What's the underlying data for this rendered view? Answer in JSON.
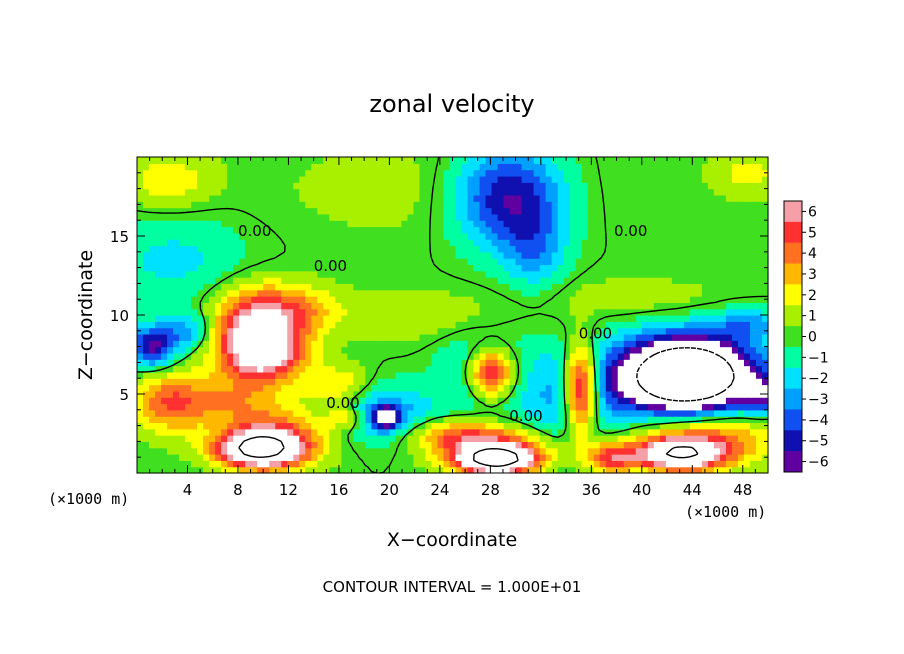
{
  "chart_data": {
    "type": "heatmap",
    "title": "zonal velocity",
    "xlabel": "X−coordinate",
    "ylabel": "Z−coordinate",
    "x_unit_left": "(×1000 m)",
    "x_unit_right": "(×1000 m)",
    "footer": "CONTOUR INTERVAL = 1.000E+01",
    "xlim": [
      0,
      50
    ],
    "ylim": [
      0,
      20
    ],
    "x_ticks": [
      4,
      8,
      12,
      16,
      20,
      24,
      28,
      32,
      36,
      40,
      44,
      48
    ],
    "y_ticks": [
      5,
      10,
      15
    ],
    "colorbar": {
      "levels": [
        6,
        5,
        4,
        3,
        2,
        1,
        0,
        -1,
        -2,
        -3,
        -4,
        -5,
        -6
      ],
      "labels": [
        "6",
        "5",
        "4",
        "3",
        "2",
        "1",
        "0",
        "−1",
        "−2",
        "−3",
        "−4",
        "−5",
        "−6"
      ],
      "colors": [
        "#f5a0a8",
        "#ff3030",
        "#ff7020",
        "#ffb800",
        "#ffff00",
        "#a8f000",
        "#40e020",
        "#00ffa0",
        "#00e0ff",
        "#00a0ff",
        "#1050f0",
        "#1010b0",
        "#6000a0"
      ]
    },
    "contour_labels": [
      {
        "text": "0.00",
        "x": 8.0,
        "z": 15.0
      },
      {
        "text": "0.00",
        "x": 14.0,
        "z": 12.8
      },
      {
        "text": "0.00",
        "x": 37.8,
        "z": 15.0
      },
      {
        "text": "0.00",
        "x": 35.0,
        "z": 8.5
      },
      {
        "text": "0.00",
        "x": 15.0,
        "z": 4.1
      },
      {
        "text": "0.00",
        "x": 29.5,
        "z": 3.3
      }
    ],
    "blobs": [
      {
        "x": 24,
        "z": 18,
        "rx": 14,
        "rz": 3.5,
        "v": 1.0
      },
      {
        "x": 2.5,
        "z": 18.5,
        "rx": 3.5,
        "rz": 1.8,
        "v": 2.2
      },
      {
        "x": 48.5,
        "z": 19,
        "rx": 3,
        "rz": 1.5,
        "v": 1.8
      },
      {
        "x": 29.5,
        "z": 17.5,
        "rx": 4.5,
        "rz": 3.2,
        "v": -6.2
      },
      {
        "x": 31.5,
        "z": 14,
        "rx": 2.5,
        "rz": 2.5,
        "v": -2.5
      },
      {
        "x": 20,
        "z": 15.5,
        "rx": 5,
        "rz": 1.5,
        "v": 0.0
      },
      {
        "x": 3,
        "z": 13.5,
        "rx": 6,
        "rz": 3.0,
        "v": -1.8
      },
      {
        "x": 1.2,
        "z": 8,
        "rx": 1.8,
        "rz": 1.3,
        "v": -5.8
      },
      {
        "x": 4,
        "z": 9,
        "rx": 2,
        "rz": 1.2,
        "v": -3.0
      },
      {
        "x": 9.5,
        "z": 10.2,
        "rx": 3.5,
        "rz": 2.0,
        "v": 4.5
      },
      {
        "x": 9.8,
        "z": 7.8,
        "rx": 3.4,
        "rz": 2.1,
        "v": 8.5
      },
      {
        "x": 13.5,
        "z": 10.5,
        "rx": 3,
        "rz": 1.5,
        "v": 2.0
      },
      {
        "x": 22,
        "z": 10,
        "rx": 7,
        "rz": 1.6,
        "v": 1.3
      },
      {
        "x": 40,
        "z": 11,
        "rx": 8,
        "rz": 1.5,
        "v": 1.2
      },
      {
        "x": 2.5,
        "z": 4.5,
        "rx": 3,
        "rz": 2.0,
        "v": 4.0
      },
      {
        "x": 7,
        "z": 4.5,
        "rx": 4,
        "rz": 1.5,
        "v": 2.5
      },
      {
        "x": 11,
        "z": 2.2,
        "rx": 4,
        "rz": 1.8,
        "v": 5.0
      },
      {
        "x": 9.5,
        "z": 1.5,
        "rx": 3.2,
        "rz": 1.1,
        "v": 9.0
      },
      {
        "x": 16,
        "z": 5.5,
        "rx": 2.5,
        "rz": 1.3,
        "v": 2.8
      },
      {
        "x": 19.5,
        "z": 3.8,
        "rx": 4,
        "rz": 1.8,
        "v": -3.5
      },
      {
        "x": 19.8,
        "z": 3.5,
        "rx": 1.0,
        "rz": 0.7,
        "v": -6.5
      },
      {
        "x": 16.5,
        "z": 3.5,
        "rx": 1.5,
        "rz": 0.8,
        "v": 3.0
      },
      {
        "x": 27.5,
        "z": 6.3,
        "rx": 3.0,
        "rz": 2.4,
        "v": -4.5
      },
      {
        "x": 28.0,
        "z": 6.3,
        "rx": 2.0,
        "rz": 1.7,
        "v": 9.5
      },
      {
        "x": 25,
        "z": 2.5,
        "rx": 4,
        "rz": 1.0,
        "v": 3.2
      },
      {
        "x": 28.5,
        "z": 1.5,
        "rx": 4.5,
        "rz": 1.3,
        "v": 5.8
      },
      {
        "x": 28.5,
        "z": 0.8,
        "rx": 3.0,
        "rz": 0.8,
        "v": 9.0
      },
      {
        "x": 34.5,
        "z": 4.5,
        "rx": 4.0,
        "rz": 3.5,
        "v": -3.0
      },
      {
        "x": 35.2,
        "z": 5.3,
        "rx": 1.4,
        "rz": 2.8,
        "v": 9.0
      },
      {
        "x": 37.5,
        "z": 1.0,
        "rx": 2.0,
        "rz": 1.0,
        "v": 5.0
      },
      {
        "x": 43.5,
        "z": 6.0,
        "rx": 6.5,
        "rz": 3.0,
        "v": -6.5
      },
      {
        "x": 43.5,
        "z": 6.2,
        "rx": 4.2,
        "rz": 2.0,
        "v": -12.0
      },
      {
        "x": 45,
        "z": 2.5,
        "rx": 6,
        "rz": 1.8,
        "v": 5.0
      },
      {
        "x": 43,
        "z": 1.2,
        "rx": 3.5,
        "rz": 1.0,
        "v": 9.0
      },
      {
        "x": 49.5,
        "z": 5.0,
        "rx": 1.5,
        "rz": 1.2,
        "v": -4.0
      },
      {
        "x": 48.5,
        "z": 9.5,
        "rx": 3,
        "rz": 1.0,
        "v": -2.5
      }
    ]
  }
}
